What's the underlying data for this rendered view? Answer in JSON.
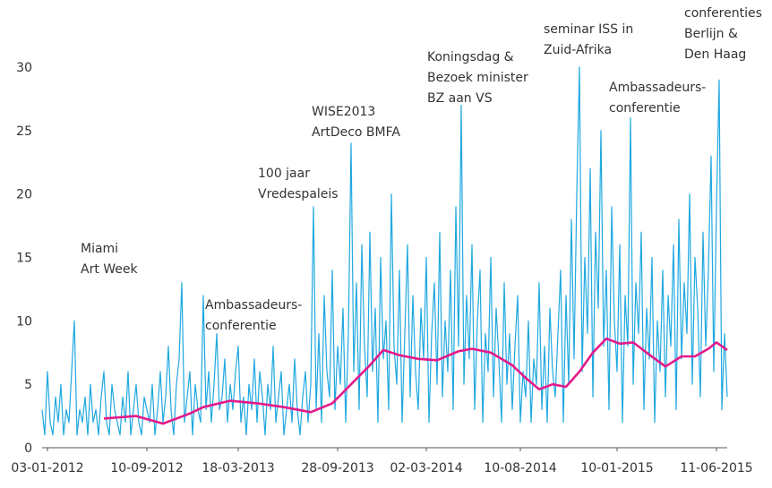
{
  "chart_data": {
    "type": "line",
    "xlim": [
      0,
      255
    ],
    "xticks": [
      {
        "value": 2,
        "label": "03-01-2012"
      },
      {
        "value": 39,
        "label": "10-09-2012"
      },
      {
        "value": 73,
        "label": "18-03-2013"
      },
      {
        "value": 110,
        "label": "28-09-2013"
      },
      {
        "value": 143,
        "label": "02-03-2014"
      },
      {
        "value": 178,
        "label": "10-08-2014"
      },
      {
        "value": 214,
        "label": "10-01-2015"
      },
      {
        "value": 251,
        "label": "11-06-2015"
      }
    ],
    "ylim": [
      0,
      30
    ],
    "yticks": [
      0,
      5,
      10,
      15,
      20,
      25,
      30
    ],
    "grid": false,
    "series": [
      {
        "color": "#1fa8e0",
        "values": [
          3,
          1,
          6,
          2,
          1,
          4,
          2,
          5,
          1,
          3,
          2,
          6,
          10,
          1,
          3,
          2,
          4,
          1,
          5,
          2,
          3,
          1,
          4,
          6,
          2,
          1,
          5,
          3,
          2,
          1,
          4,
          2,
          6,
          1,
          3,
          5,
          2,
          1,
          4,
          3,
          2,
          5,
          1,
          3,
          6,
          2,
          4,
          8,
          3,
          1,
          5,
          7,
          13,
          2,
          4,
          6,
          1,
          5,
          3,
          2,
          12,
          3,
          6,
          2,
          5,
          9,
          3,
          4,
          7,
          2,
          5,
          3,
          6,
          8,
          2,
          4,
          1,
          5,
          3,
          7,
          2,
          6,
          4,
          1,
          5,
          3,
          8,
          2,
          4,
          6,
          1,
          3,
          5,
          2,
          7,
          3,
          1,
          4,
          6,
          2,
          5,
          19,
          3,
          9,
          2,
          12,
          6,
          4,
          14,
          3,
          8,
          5,
          11,
          2,
          9,
          24,
          6,
          13,
          3,
          16,
          8,
          4,
          17,
          6,
          11,
          2,
          15,
          7,
          10,
          3,
          20,
          8,
          5,
          14,
          2,
          9,
          16,
          4,
          12,
          6,
          3,
          11,
          7,
          15,
          2,
          9,
          13,
          5,
          17,
          4,
          10,
          6,
          14,
          3,
          19,
          8,
          27,
          5,
          12,
          7,
          16,
          3,
          10,
          14,
          2,
          9,
          6,
          15,
          4,
          11,
          7,
          2,
          13,
          5,
          9,
          3,
          8,
          12,
          2,
          6,
          4,
          10,
          2,
          7,
          5,
          13,
          3,
          8,
          2,
          11,
          6,
          4,
          9,
          14,
          2,
          12,
          5,
          18,
          7,
          20,
          30,
          6,
          15,
          9,
          22,
          4,
          17,
          11,
          25,
          8,
          14,
          3,
          19,
          10,
          6,
          16,
          2,
          12,
          8,
          26,
          5,
          13,
          9,
          17,
          3,
          11,
          7,
          15,
          2,
          10,
          6,
          14,
          4,
          12,
          8,
          16,
          3,
          18,
          7,
          13,
          9,
          20,
          5,
          15,
          11,
          4,
          17,
          8,
          14,
          23,
          6,
          19,
          29,
          3,
          9,
          4
        ]
      },
      {
        "color": "#e5198b",
        "x": [
          23,
          35,
          45,
          55,
          60,
          70,
          80,
          90,
          100,
          108,
          115,
          122,
          127,
          133,
          140,
          147,
          155,
          160,
          167,
          175,
          180,
          185,
          190,
          195,
          200,
          205,
          210,
          215,
          220,
          225,
          232,
          238,
          243,
          248,
          251,
          255
        ],
        "values": [
          2.3,
          2.5,
          1.9,
          2.7,
          3.2,
          3.7,
          3.5,
          3.2,
          2.8,
          3.5,
          5.0,
          6.5,
          7.7,
          7.3,
          7.0,
          6.9,
          7.6,
          7.8,
          7.5,
          6.5,
          5.5,
          4.6,
          5.0,
          4.8,
          6.0,
          7.5,
          8.6,
          8.2,
          8.3,
          7.5,
          6.4,
          7.2,
          7.2,
          7.8,
          8.3,
          7.7
        ]
      }
    ],
    "annotations": [
      {
        "lines": [
          "Miami",
          "Art Week"
        ]
      },
      {
        "lines": [
          "Ambassadeurs-",
          "conferentie"
        ]
      },
      {
        "lines": [
          "100 jaar",
          "Vredespaleis"
        ]
      },
      {
        "lines": [
          "WISE2013",
          "ArtDeco BMFA"
        ]
      },
      {
        "lines": [
          "Koningsdag &",
          "Bezoek minister",
          "BZ aan VS"
        ]
      },
      {
        "lines": [
          "seminar ISS in",
          "Zuid-Afrika"
        ]
      },
      {
        "lines": [
          "Ambassadeurs-",
          "conferentie"
        ]
      },
      {
        "lines": [
          "conferenties",
          "Berlijn &",
          "Den Haag"
        ]
      }
    ]
  }
}
